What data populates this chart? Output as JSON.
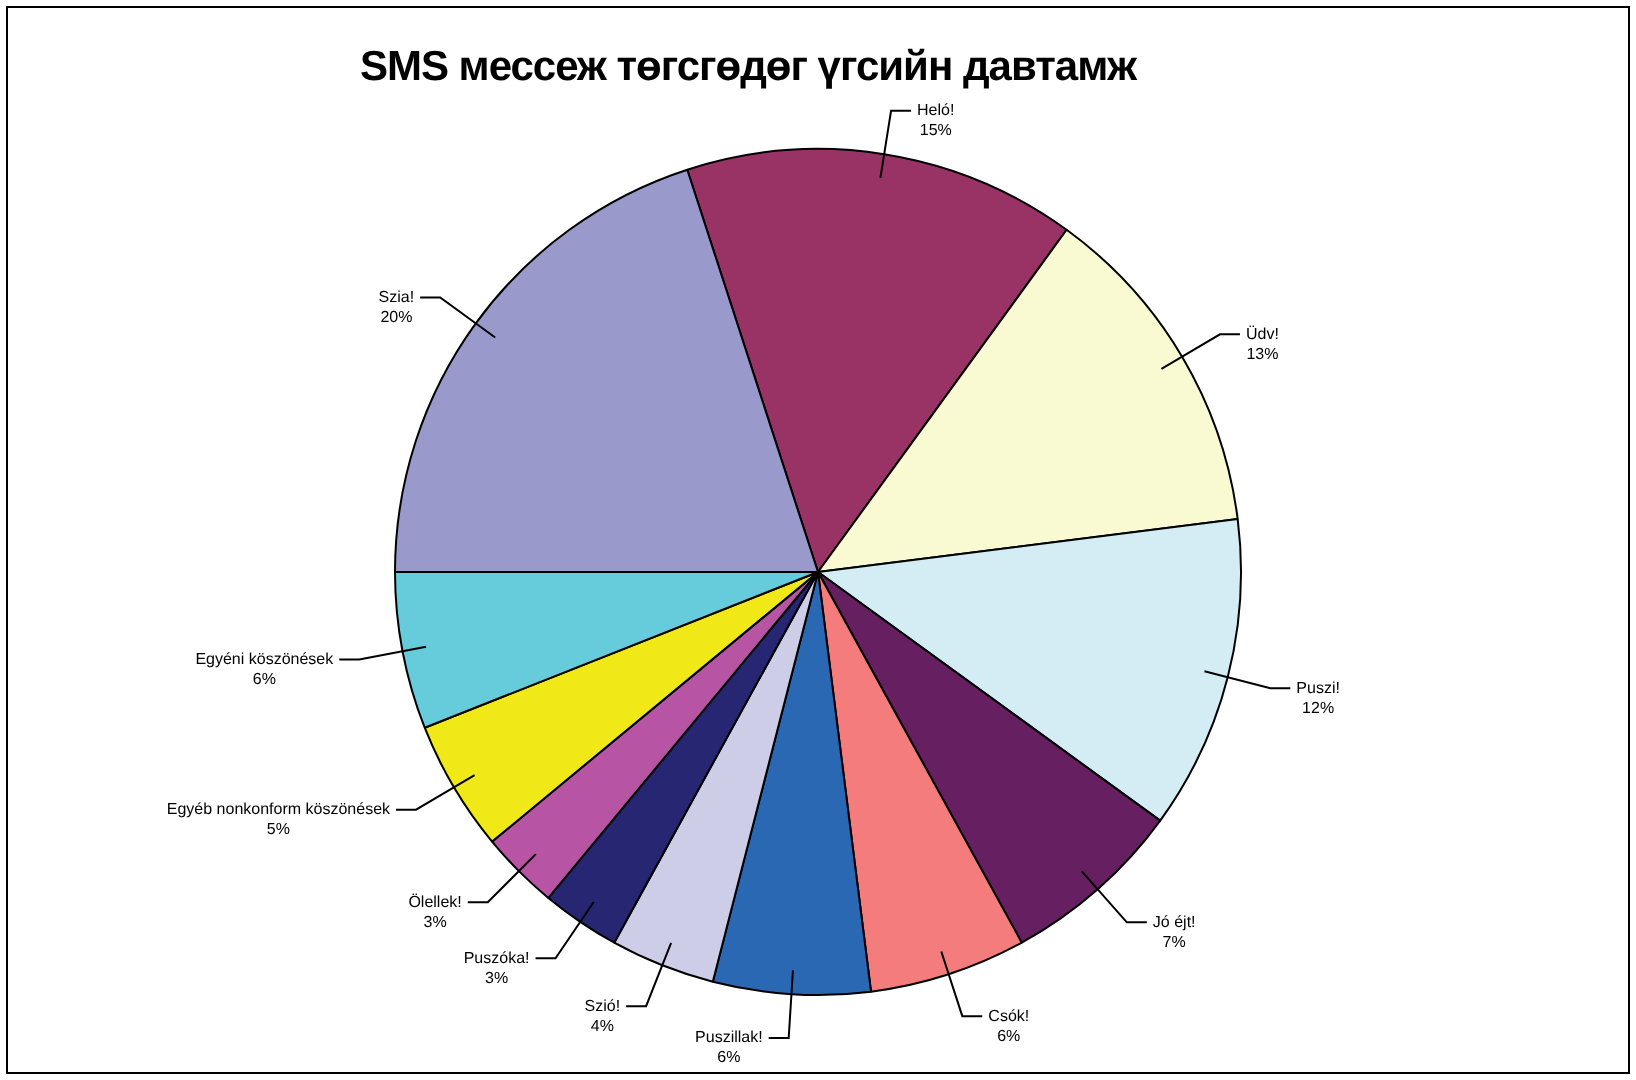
{
  "chart_data": {
    "type": "pie",
    "title": "SMS мессеж төгсгөдөг үгсийн давтамж",
    "categories": [
      "Heló!",
      "Üdv!",
      "Puszi!",
      "Jó éjt!",
      "Csók!",
      "Puszillak!",
      "Szió!",
      "Puszóka!",
      "Ölellek!",
      "Egyéb nonkonform köszönések",
      "Egyéni köszönések",
      "Szia!"
    ],
    "values": [
      15,
      13,
      12,
      7,
      6,
      6,
      4,
      3,
      3,
      5,
      6,
      20
    ],
    "value_labels": [
      "15%",
      "13%",
      "12%",
      "7%",
      "6%",
      "6%",
      "4%",
      "3%",
      "3%",
      "5%",
      "6%",
      "20%"
    ],
    "colors": [
      "#993366",
      "#fafad2",
      "#d4ecf3",
      "#661f60",
      "#f47c7c",
      "#2b68b4",
      "#cdcde8",
      "#262673",
      "#b754a4",
      "#f0e817",
      "#66ccdb",
      "#9999cc"
    ],
    "legend": false
  }
}
